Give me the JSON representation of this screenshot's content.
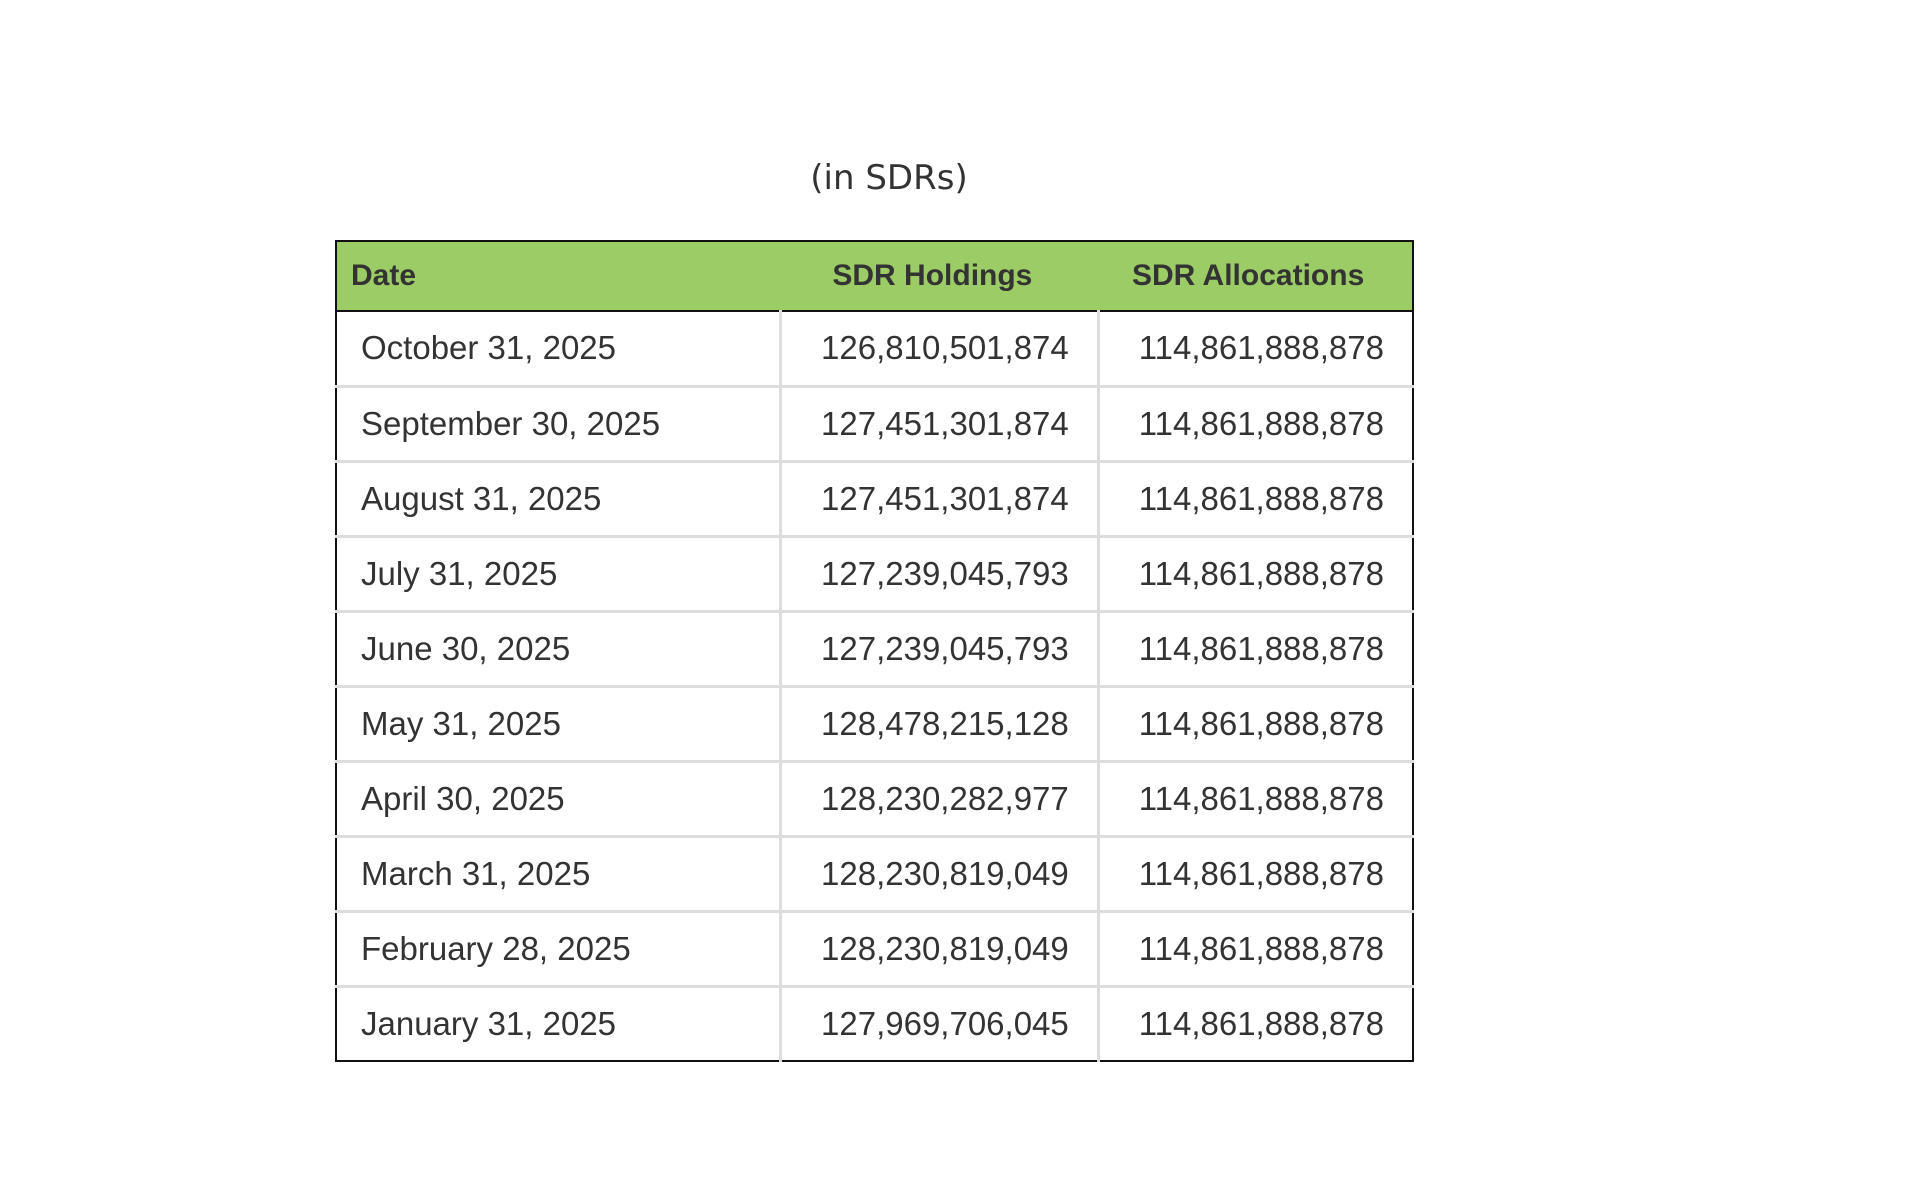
{
  "subtitle": "(in SDRs)",
  "table": {
    "headers": [
      "Date",
      "SDR Holdings",
      "SDR Allocations"
    ],
    "header_color": "#9ccc65",
    "rows": [
      [
        "October 31, 2025",
        "126,810,501,874",
        "114,861,888,878"
      ],
      [
        "September 30, 2025",
        "127,451,301,874",
        "114,861,888,878"
      ],
      [
        "August 31, 2025",
        "127,451,301,874",
        "114,861,888,878"
      ],
      [
        "July 31, 2025",
        "127,239,045,793",
        "114,861,888,878"
      ],
      [
        "June 30, 2025",
        "127,239,045,793",
        "114,861,888,878"
      ],
      [
        "May 31, 2025",
        "128,478,215,128",
        "114,861,888,878"
      ],
      [
        "April 30, 2025",
        "128,230,282,977",
        "114,861,888,878"
      ],
      [
        "March 31, 2025",
        "128,230,819,049",
        "114,861,888,878"
      ],
      [
        "February 28, 2025",
        "128,230,819,049",
        "114,861,888,878"
      ],
      [
        "January 31, 2025",
        "127,969,706,045",
        "114,861,888,878"
      ]
    ]
  }
}
